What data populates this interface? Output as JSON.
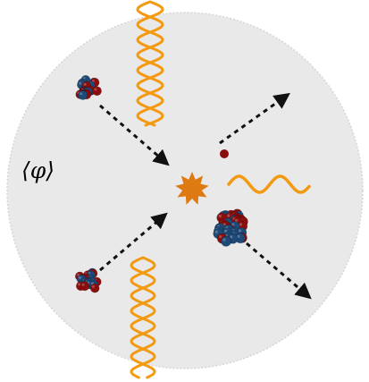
{
  "diagram": {
    "field_label": "⟨φ⟩",
    "colors": {
      "background_disc": "#e9e9e9",
      "disc_edge": "#d6d6d6",
      "wave": "#f39a12",
      "vertex": "#dd7a12",
      "proton": "#8b0e0e",
      "neutron": "#1e4a78",
      "arrow": "#111111"
    },
    "elements": {
      "disc": "background-disc",
      "wave_top": "gamma-wave-incoming-top",
      "wave_bottom": "gamma-wave-incoming-bottom",
      "wave_out": "gamma-wave-outgoing",
      "vertex": "interaction-vertex-star",
      "nucleus_in_top": "nucleus-incoming-top",
      "nucleus_in_bottom": "nucleus-incoming-bottom",
      "nucleus_out": "nucleus-outgoing",
      "particle_out": "particle-outgoing",
      "arrows": [
        "arrow-in-top",
        "arrow-in-bottom",
        "arrow-out-particle",
        "arrow-out-nucleus"
      ]
    }
  }
}
